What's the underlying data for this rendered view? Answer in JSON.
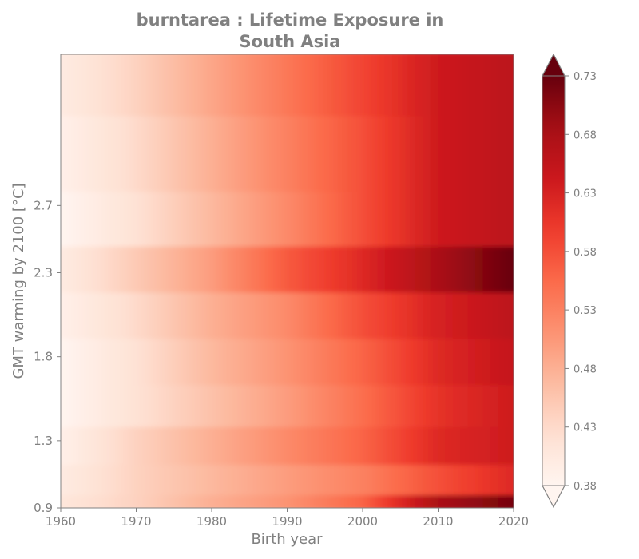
{
  "chart_data": {
    "type": "heatmap",
    "title_lines": [
      "burntarea : Lifetime Exposure in",
      "South Asia"
    ],
    "xlabel": "Birth year",
    "ylabel": "GMT warming by 2100 [°C]",
    "xlim": [
      1960,
      2020
    ],
    "ylim": [
      0.9,
      3.6
    ],
    "x_ticks": [
      1960,
      1970,
      1980,
      1990,
      2000,
      2010,
      2020
    ],
    "y_ticks": [
      0.9,
      1.3,
      1.8,
      2.3,
      2.7
    ],
    "y_tick_labels": [
      "0.9",
      "1.3",
      "1.8",
      "2.3",
      "2.7"
    ],
    "colormap": "Reds",
    "colorbar": {
      "min": 0.38,
      "max": 0.73,
      "ticks": [
        0.38,
        0.43,
        0.48,
        0.53,
        0.58,
        0.63,
        0.68,
        0.73
      ],
      "extend": "both",
      "placement": "right"
    },
    "x": [
      1960,
      1970,
      1980,
      1990,
      2000,
      2010,
      2020
    ],
    "rows": [
      {
        "y": 0.94,
        "values": [
          0.41,
          0.44,
          0.48,
          0.51,
          0.56,
          0.68,
          0.72
        ]
      },
      {
        "y": 1.05,
        "values": [
          0.4,
          0.44,
          0.47,
          0.5,
          0.53,
          0.58,
          0.62
        ]
      },
      {
        "y": 1.3,
        "values": [
          0.39,
          0.44,
          0.48,
          0.52,
          0.56,
          0.62,
          0.64
        ]
      },
      {
        "y": 1.5,
        "values": [
          0.38,
          0.42,
          0.46,
          0.5,
          0.55,
          0.61,
          0.64
        ]
      },
      {
        "y": 1.8,
        "values": [
          0.38,
          0.42,
          0.47,
          0.51,
          0.56,
          0.62,
          0.65
        ]
      },
      {
        "y": 2.05,
        "values": [
          0.39,
          0.43,
          0.48,
          0.52,
          0.58,
          0.63,
          0.66
        ]
      },
      {
        "y": 2.35,
        "values": [
          0.4,
          0.45,
          0.5,
          0.57,
          0.62,
          0.68,
          0.73
        ]
      },
      {
        "y": 2.6,
        "values": [
          0.38,
          0.42,
          0.47,
          0.52,
          0.58,
          0.64,
          0.66
        ]
      },
      {
        "y": 3.0,
        "values": [
          0.39,
          0.43,
          0.48,
          0.53,
          0.58,
          0.64,
          0.66
        ]
      },
      {
        "y": 3.5,
        "values": [
          0.4,
          0.44,
          0.49,
          0.54,
          0.59,
          0.64,
          0.66
        ]
      }
    ]
  }
}
